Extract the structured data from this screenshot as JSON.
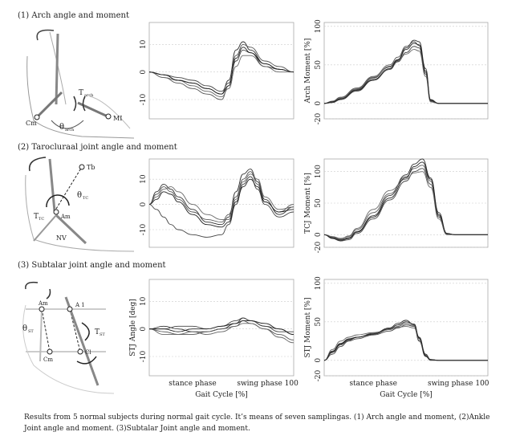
{
  "sections": [
    {
      "title": "(1)  Arch angle and moment"
    },
    {
      "title": "(2)  Tarocluraal joint angle and moment"
    },
    {
      "title": "(3)  Subtalar joint angle and moment"
    }
  ],
  "diagram_labels": {
    "d1": {
      "T": "T",
      "Tsub": "arch",
      "theta": "θ",
      "thsub": "arch",
      "Cm": "Cm",
      "MI": "MI"
    },
    "d2": {
      "Tb": "Tb",
      "theta": "θ",
      "thsub": "TC",
      "T": "T",
      "Tsub": "TC",
      "Am": "Am",
      "NV": "NV"
    },
    "d3": {
      "Am": "Am",
      "A1": "A 1",
      "theta": "θ",
      "thsub": "ST",
      "T": "T",
      "Tsub": "ST",
      "Cm": "Cm",
      "Cl": "Cl"
    }
  },
  "caption": "Results from 5 normal subjects during normal gait cycle. It’s means of seven samplingas.  (1) Arch angle and moment,  (2)Ankle Joint angle and moment. (3)Subtalar Joint angle and moment.",
  "chart_data": [
    {
      "id": "arch-angle",
      "type": "line",
      "ylabel": "",
      "xlabel": "",
      "ylim": [
        -17,
        18
      ],
      "yticks": [
        -10,
        0,
        10
      ],
      "x": [
        0,
        10,
        20,
        30,
        40,
        50,
        55,
        60,
        65,
        70,
        80,
        90,
        100
      ],
      "series": [
        {
          "values": [
            0,
            -1,
            -3,
            -4,
            -6,
            -8,
            -3,
            8,
            11,
            8,
            3,
            1,
            0
          ]
        },
        {
          "values": [
            0,
            -2,
            -4,
            -6,
            -8,
            -10,
            -5,
            6,
            10,
            9,
            4,
            2,
            0
          ]
        },
        {
          "values": [
            0,
            -1,
            -2,
            -3,
            -5,
            -7,
            -4,
            4,
            8,
            7,
            2,
            1,
            0
          ]
        },
        {
          "values": [
            0,
            -2,
            -3,
            -5,
            -7,
            -9,
            -6,
            2,
            6,
            6,
            2,
            0,
            0
          ]
        },
        {
          "values": [
            0,
            -1,
            -3,
            -4,
            -6,
            -8,
            -5,
            5,
            9,
            7,
            3,
            1,
            0
          ]
        }
      ]
    },
    {
      "id": "arch-moment",
      "type": "line",
      "ylabel": "Arch Moment [%]",
      "xlabel": "",
      "ylim": [
        -20,
        105
      ],
      "yticks": [
        -20,
        0,
        50,
        100
      ],
      "x": [
        0,
        5,
        10,
        20,
        30,
        40,
        45,
        50,
        55,
        58,
        62,
        65,
        70,
        80,
        90,
        100
      ],
      "series": [
        {
          "values": [
            0,
            2,
            6,
            18,
            33,
            48,
            57,
            72,
            82,
            80,
            45,
            5,
            0,
            0,
            0,
            0
          ]
        },
        {
          "values": [
            0,
            3,
            8,
            20,
            35,
            50,
            60,
            74,
            80,
            75,
            40,
            4,
            0,
            0,
            0,
            0
          ]
        },
        {
          "values": [
            0,
            1,
            5,
            16,
            30,
            44,
            54,
            66,
            74,
            72,
            38,
            3,
            0,
            0,
            0,
            0
          ]
        },
        {
          "values": [
            0,
            2,
            7,
            19,
            34,
            47,
            55,
            64,
            70,
            68,
            35,
            2,
            0,
            0,
            0,
            0
          ]
        },
        {
          "values": [
            0,
            2,
            6,
            17,
            31,
            45,
            56,
            70,
            78,
            76,
            42,
            4,
            0,
            0,
            0,
            0
          ]
        }
      ]
    },
    {
      "id": "tc-angle",
      "type": "line",
      "ylabel": "",
      "xlabel": "",
      "ylim": [
        -17,
        18
      ],
      "yticks": [
        -10,
        0,
        10
      ],
      "x": [
        0,
        5,
        10,
        15,
        20,
        30,
        40,
        50,
        55,
        60,
        65,
        70,
        75,
        80,
        90,
        100
      ],
      "series": [
        {
          "values": [
            0,
            5,
            8,
            6,
            3,
            -2,
            -7,
            -8,
            -5,
            5,
            12,
            14,
            9,
            2,
            -4,
            -1
          ]
        },
        {
          "values": [
            0,
            4,
            7,
            5,
            2,
            -3,
            -6,
            -7,
            -4,
            3,
            10,
            13,
            8,
            1,
            -3,
            0
          ]
        },
        {
          "values": [
            0,
            -2,
            -5,
            -8,
            -10,
            -12,
            -13,
            -12,
            -8,
            0,
            8,
            11,
            6,
            0,
            -5,
            -3
          ]
        },
        {
          "values": [
            0,
            3,
            6,
            7,
            5,
            0,
            -4,
            -6,
            -6,
            2,
            9,
            12,
            10,
            3,
            -2,
            -1
          ]
        },
        {
          "values": [
            0,
            2,
            5,
            4,
            1,
            -4,
            -8,
            -9,
            -7,
            1,
            7,
            10,
            7,
            1,
            -3,
            -2
          ]
        }
      ]
    },
    {
      "id": "tc-moment",
      "type": "line",
      "ylabel": "TCJ Moment [%]",
      "xlabel": "",
      "ylim": [
        -20,
        120
      ],
      "yticks": [
        -20,
        0,
        50,
        100
      ],
      "x": [
        0,
        5,
        10,
        15,
        20,
        30,
        40,
        50,
        55,
        60,
        65,
        70,
        75,
        80,
        90,
        100
      ],
      "series": [
        {
          "values": [
            0,
            -5,
            -8,
            -5,
            5,
            30,
            62,
            95,
            112,
            120,
            90,
            35,
            2,
            0,
            0,
            0
          ]
        },
        {
          "values": [
            0,
            -3,
            -6,
            -3,
            8,
            35,
            65,
            92,
            105,
            110,
            85,
            30,
            1,
            0,
            0,
            0
          ]
        },
        {
          "values": [
            0,
            -6,
            -10,
            -8,
            2,
            25,
            55,
            85,
            100,
            105,
            80,
            28,
            1,
            0,
            0,
            0
          ]
        },
        {
          "values": [
            0,
            -4,
            -7,
            -2,
            10,
            40,
            70,
            88,
            98,
            100,
            75,
            25,
            0,
            0,
            0,
            0
          ]
        },
        {
          "values": [
            0,
            -5,
            -9,
            -6,
            4,
            28,
            58,
            90,
            108,
            115,
            88,
            32,
            2,
            0,
            0,
            0
          ]
        }
      ]
    },
    {
      "id": "stj-angle",
      "type": "line",
      "ylabel": "STJ Angle [deg]",
      "xlabel": "Gait Cycle [%]",
      "ylim": [
        -17,
        18
      ],
      "yticks": [
        -10,
        0,
        10
      ],
      "xticklabels": [
        "stance phase",
        "swing phase 100"
      ],
      "x": [
        0,
        10,
        20,
        30,
        40,
        50,
        60,
        65,
        70,
        80,
        90,
        100
      ],
      "series": [
        {
          "values": [
            0,
            1,
            0,
            -1,
            -1,
            0,
            2,
            4,
            3,
            1,
            0,
            -2
          ]
        },
        {
          "values": [
            0,
            -1,
            -2,
            -2,
            -1,
            0,
            1,
            3,
            2,
            0,
            -2,
            -4
          ]
        },
        {
          "values": [
            0,
            0,
            1,
            1,
            0,
            1,
            3,
            4,
            3,
            1,
            -1,
            -1
          ]
        },
        {
          "values": [
            0,
            -2,
            -2,
            -1,
            -2,
            -1,
            1,
            2,
            2,
            0,
            -3,
            -5
          ]
        },
        {
          "values": [
            0,
            0,
            -1,
            0,
            0,
            1,
            2,
            3,
            3,
            2,
            0,
            -2
          ]
        }
      ]
    },
    {
      "id": "stj-moment",
      "type": "line",
      "ylabel": "STJ Moment [%]",
      "xlabel": "Gait Cycle [%]",
      "ylim": [
        -20,
        105
      ],
      "yticks": [
        -20,
        0,
        50,
        100
      ],
      "xticklabels": [
        "stance phase",
        "swing phase 100"
      ],
      "x": [
        0,
        5,
        10,
        15,
        20,
        30,
        40,
        45,
        50,
        55,
        58,
        62,
        65,
        70,
        80,
        100
      ],
      "series": [
        {
          "values": [
            0,
            12,
            22,
            28,
            30,
            35,
            42,
            48,
            52,
            46,
            30,
            8,
            1,
            0,
            0,
            0
          ]
        },
        {
          "values": [
            0,
            10,
            20,
            26,
            30,
            34,
            40,
            44,
            48,
            45,
            28,
            6,
            1,
            0,
            0,
            0
          ]
        },
        {
          "values": [
            0,
            8,
            18,
            25,
            28,
            33,
            38,
            42,
            46,
            44,
            25,
            5,
            0,
            0,
            0,
            0
          ]
        },
        {
          "values": [
            0,
            14,
            25,
            30,
            33,
            36,
            40,
            43,
            44,
            42,
            26,
            7,
            1,
            0,
            0,
            0
          ]
        },
        {
          "values": [
            0,
            11,
            21,
            27,
            30,
            34,
            41,
            46,
            50,
            47,
            29,
            6,
            1,
            0,
            0,
            0
          ]
        }
      ]
    }
  ]
}
